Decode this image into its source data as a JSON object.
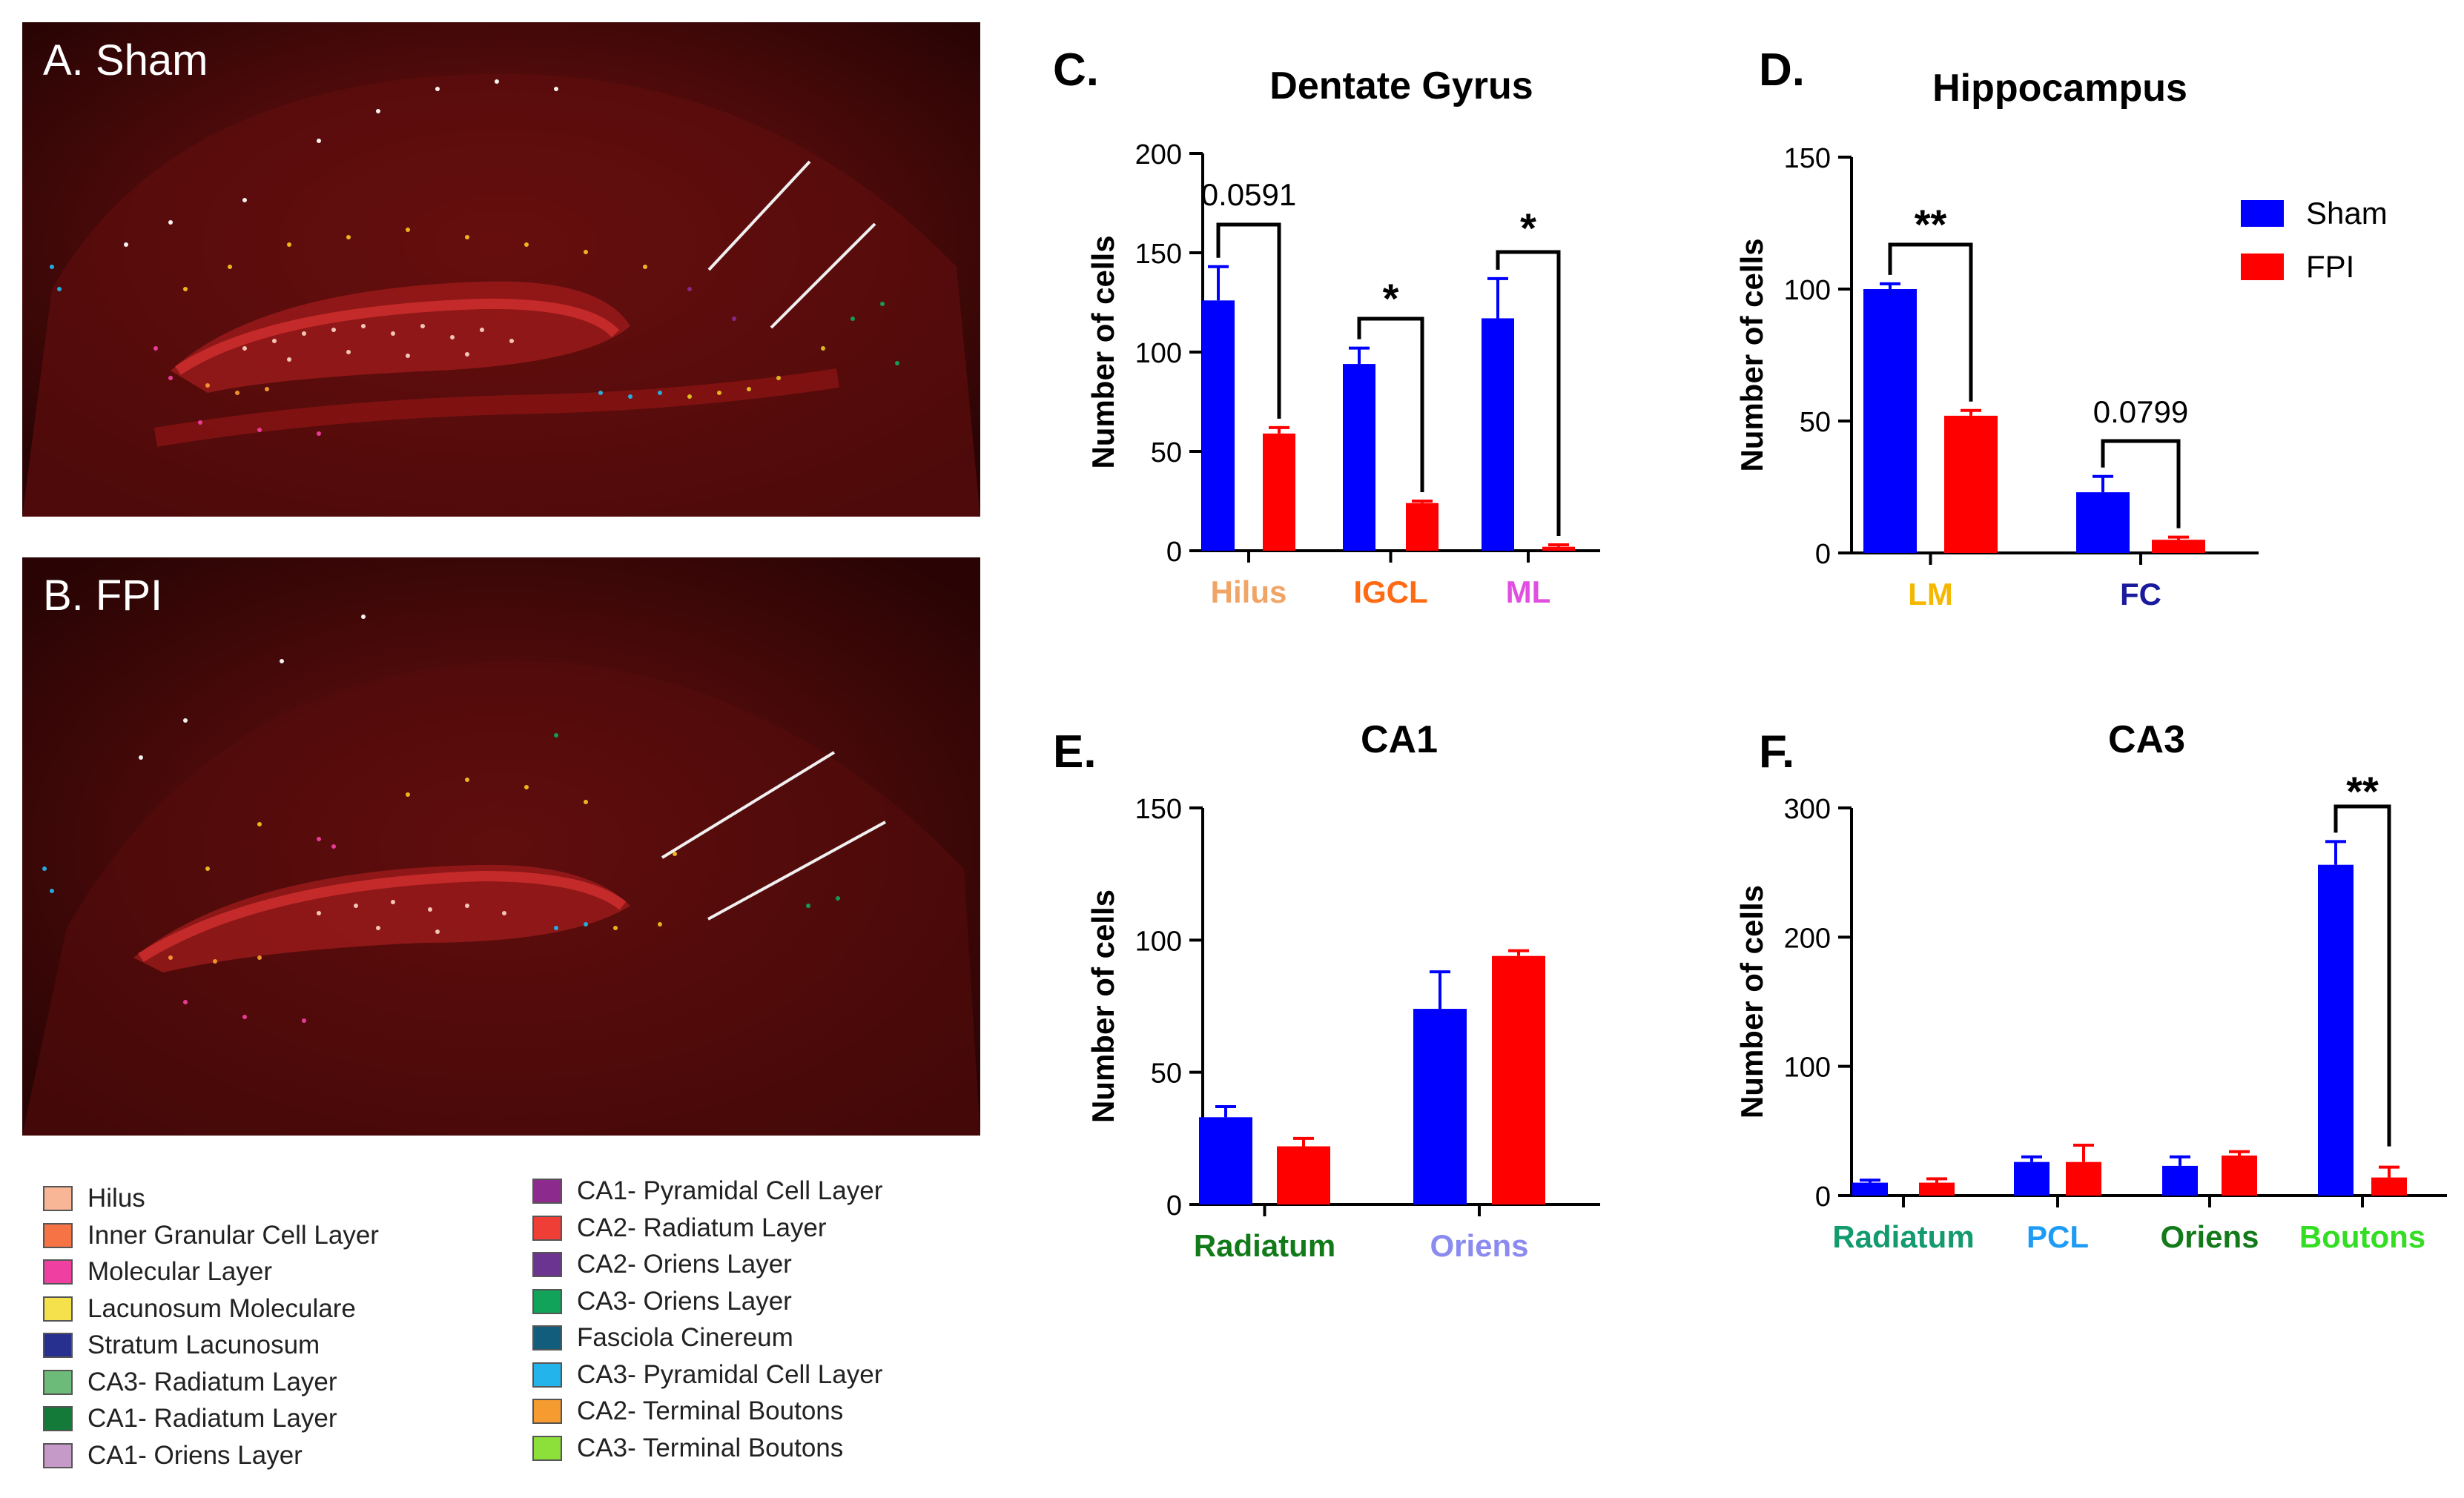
{
  "images": [
    {
      "label": "A. Sham"
    },
    {
      "label": "B. FPI"
    }
  ],
  "legend": [
    {
      "label": "Hilus",
      "color": "#f8b697"
    },
    {
      "label": "Inner Granular Cell Layer",
      "color": "#f57345"
    },
    {
      "label": "Molecular Layer",
      "color": "#ef3fa0"
    },
    {
      "label": "Lacunosum Moleculare",
      "color": "#f4e14b"
    },
    {
      "label": "Stratum Lacunosum",
      "color": "#28308f"
    },
    {
      "label": "CA3- Radiatum Layer",
      "color": "#6dbb78"
    },
    {
      "label": "CA1- Radiatum Layer",
      "color": "#137a3a"
    },
    {
      "label": "CA1- Oriens Layer",
      "color": "#c69ac8"
    },
    {
      "label": "CA1- Pyramidal Cell Layer",
      "color": "#8d2a8e"
    },
    {
      "label": "CA2- Radiatum Layer",
      "color": "#ee3e36"
    },
    {
      "label": "CA2- Oriens Layer",
      "color": "#6b3491"
    },
    {
      "label": "CA3- Oriens Layer",
      "color": "#12a35a"
    },
    {
      "label": "Fasciola Cinereum",
      "color": "#135d7c"
    },
    {
      "label": "CA3- Pyramidal Cell Layer",
      "color": "#22b4ea"
    },
    {
      "label": "CA2- Terminal Boutons",
      "color": "#f59b2f"
    },
    {
      "label": "CA3-  Terminal Boutons",
      "color": "#8ddf3a"
    }
  ],
  "colors": {
    "sham": "#0000ff",
    "fpi": "#ff0000",
    "axis": "#000000"
  },
  "chart_data": [
    {
      "id": "C",
      "panel": "C.",
      "type": "bar",
      "title": "Dentate Gyrus",
      "ylabel": "Number of cells",
      "ylim": [
        0,
        200
      ],
      "yticks": [
        0,
        50,
        100,
        150,
        200
      ],
      "categories": [
        "Hilus",
        "IGCL",
        "ML"
      ],
      "category_colors": [
        "#f0a566",
        "#ff6a13",
        "#e04fe0"
      ],
      "series": [
        {
          "name": "Sham",
          "values": [
            126,
            94,
            117
          ],
          "errors": [
            17,
            8,
            20
          ]
        },
        {
          "name": "FPI",
          "values": [
            59,
            24,
            2
          ],
          "errors": [
            3,
            1,
            1
          ]
        }
      ],
      "annotations": [
        "0.0591",
        "*",
        "*"
      ]
    },
    {
      "id": "D",
      "panel": "D.",
      "type": "bar",
      "title": "Hippocampus",
      "ylabel": "Number of cells",
      "ylim": [
        0,
        150
      ],
      "yticks": [
        0,
        50,
        100,
        150
      ],
      "categories": [
        "LM",
        "FC"
      ],
      "category_colors": [
        "#f5b800",
        "#1a1a9e"
      ],
      "series": [
        {
          "name": "Sham",
          "values": [
            100,
            23
          ],
          "errors": [
            2,
            6
          ]
        },
        {
          "name": "FPI",
          "values": [
            52,
            5
          ],
          "errors": [
            2,
            1
          ]
        }
      ],
      "annotations": [
        "**",
        "0.0799"
      ],
      "legend": [
        "Sham",
        "FPI"
      ]
    },
    {
      "id": "E",
      "panel": "E.",
      "type": "bar",
      "title": "CA1",
      "ylabel": "Number of cells",
      "ylim": [
        0,
        150
      ],
      "yticks": [
        0,
        50,
        100,
        150
      ],
      "categories": [
        "Radiatum",
        "Oriens"
      ],
      "category_colors": [
        "#137a1a",
        "#8a8af0"
      ],
      "series": [
        {
          "name": "Sham",
          "values": [
            33,
            74
          ],
          "errors": [
            4,
            14
          ]
        },
        {
          "name": "FPI",
          "values": [
            22,
            94
          ],
          "errors": [
            3,
            2
          ]
        }
      ],
      "annotations": []
    },
    {
      "id": "F",
      "panel": "F.",
      "type": "bar",
      "title": "CA3",
      "ylabel": "Number of cells",
      "ylim": [
        0,
        300
      ],
      "yticks": [
        0,
        100,
        200,
        300
      ],
      "categories": [
        "Radiatum",
        "PCL",
        "Oriens",
        "Boutons"
      ],
      "category_colors": [
        "#139a6e",
        "#1e9bf5",
        "#137a1a",
        "#33dd22"
      ],
      "series": [
        {
          "name": "Sham",
          "values": [
            10,
            26,
            23,
            256
          ],
          "errors": [
            2,
            4,
            7,
            18
          ]
        },
        {
          "name": "FPI",
          "values": [
            10,
            26,
            31,
            14
          ],
          "errors": [
            3,
            13,
            3,
            8
          ]
        }
      ],
      "annotations": [
        "",
        "",
        "",
        "**"
      ]
    }
  ]
}
